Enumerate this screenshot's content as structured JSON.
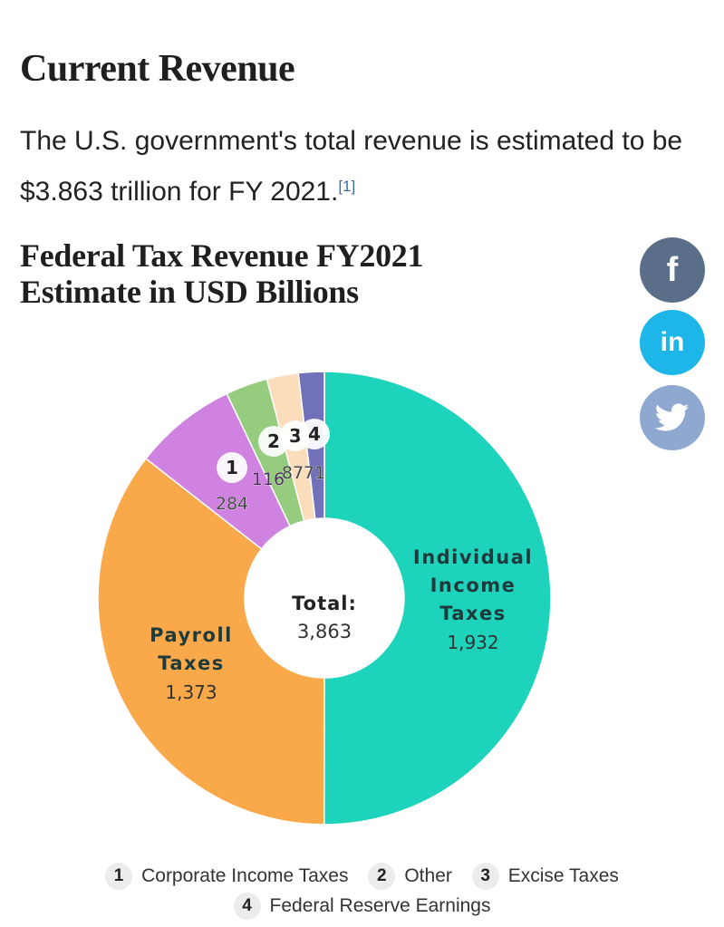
{
  "section": {
    "title": "Current Revenue",
    "intro_text": "The U.S. government's total revenue is estimated to be $3.863 trillion for FY 2021.",
    "footnote": "[1]"
  },
  "share": {
    "facebook": "f",
    "linkedin": "in",
    "twitter_icon": "twitter-bird"
  },
  "chart_data": {
    "type": "pie",
    "variant": "donut",
    "title": "Federal Tax Revenue FY2021 Estimate in USD Billions",
    "title_lines": [
      "Federal Tax Revenue FY2021",
      "Estimate in USD Billions"
    ],
    "center_label": "Total:",
    "center_value": "3,863",
    "total": 3863,
    "start_angle": "12 o'clock, clockwise",
    "slices": [
      {
        "name": "Individual Income Taxes",
        "label_lines": [
          "Individual",
          "Income",
          "Taxes"
        ],
        "value": 1932,
        "value_label": "1,932",
        "color": "#1dd3bb"
      },
      {
        "name": "Payroll Taxes",
        "label_lines": [
          "Payroll",
          "Taxes"
        ],
        "value": 1373,
        "value_label": "1,373",
        "color": "#f9a84a"
      },
      {
        "name": "Corporate Income Taxes",
        "marker": "1",
        "value": 284,
        "value_label": "284",
        "color": "#cf82e0"
      },
      {
        "name": "Other",
        "marker": "2",
        "value": 116,
        "value_label": "116",
        "color": "#95cc7e"
      },
      {
        "name": "Excise Taxes",
        "marker": "3",
        "value": 87,
        "value_label": "87",
        "color": "#fbdcbb"
      },
      {
        "name": "Federal Reserve Earnings",
        "marker": "4",
        "value": 71,
        "value_label": "71",
        "color": "#7071b8"
      }
    ],
    "legend": [
      {
        "marker": "1",
        "label": "Corporate Income Taxes"
      },
      {
        "marker": "2",
        "label": "Other"
      },
      {
        "marker": "3",
        "label": "Excise Taxes"
      },
      {
        "marker": "4",
        "label": "Federal Reserve Earnings"
      }
    ],
    "legend_position": "bottom"
  }
}
